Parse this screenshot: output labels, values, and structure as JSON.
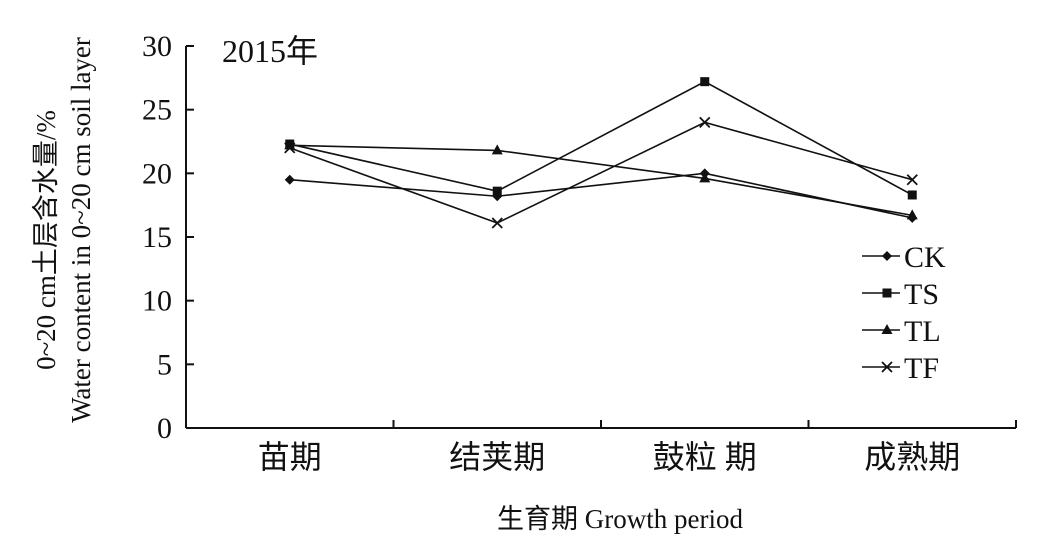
{
  "chart_data": {
    "type": "line",
    "panel_label": "2015年",
    "xlabel": "生育期 Growth period",
    "ylabel_line1": "0~20 cm土层含水量/%",
    "ylabel_line2": "Water content in 0~20 cm soil layer",
    "categories": [
      "苗期",
      "结荚期",
      "鼓粒 期",
      "成熟期"
    ],
    "ylim": [
      0,
      30
    ],
    "yticks": [
      0,
      5,
      10,
      15,
      20,
      25,
      30
    ],
    "grid": false,
    "legend_position": "right",
    "series": [
      {
        "name": "CK",
        "marker": "diamond",
        "values": [
          19.5,
          18.2,
          20.0,
          16.5
        ]
      },
      {
        "name": "TS",
        "marker": "square",
        "values": [
          22.3,
          18.6,
          27.2,
          18.3
        ]
      },
      {
        "name": "TL",
        "marker": "triangle",
        "values": [
          22.2,
          21.8,
          19.6,
          16.7
        ]
      },
      {
        "name": "TF",
        "marker": "x",
        "values": [
          22.0,
          16.1,
          24.0,
          19.5
        ]
      }
    ]
  }
}
